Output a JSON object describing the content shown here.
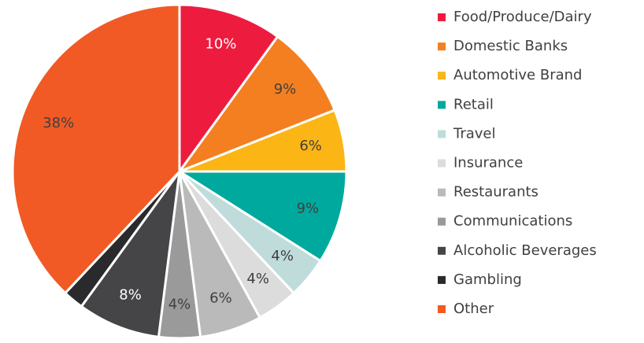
{
  "chart_data": {
    "type": "pie",
    "categories": [
      "Food/Produce/Dairy",
      "Domestic Banks",
      "Automotive Brand",
      "Retail",
      "Travel",
      "Insurance",
      "Restaurants",
      "Communications",
      "Alcoholic Beverages",
      "Gambling",
      "Other"
    ],
    "values": [
      10,
      9,
      6,
      9,
      4,
      4,
      6,
      4,
      8,
      2,
      38
    ],
    "value_labels": [
      "10%",
      "9%",
      "6%",
      "9%",
      "4%",
      "4%",
      "6%",
      "4%",
      "8%",
      null,
      "38%"
    ],
    "colors": [
      "#ed1c3f",
      "#f47f20",
      "#fbb515",
      "#00a99d",
      "#bfdcdb",
      "#dcdcdc",
      "#bababa",
      "#9a9a9a",
      "#454548",
      "#2a2a2c",
      "#f15a24"
    ],
    "legend": "right"
  }
}
